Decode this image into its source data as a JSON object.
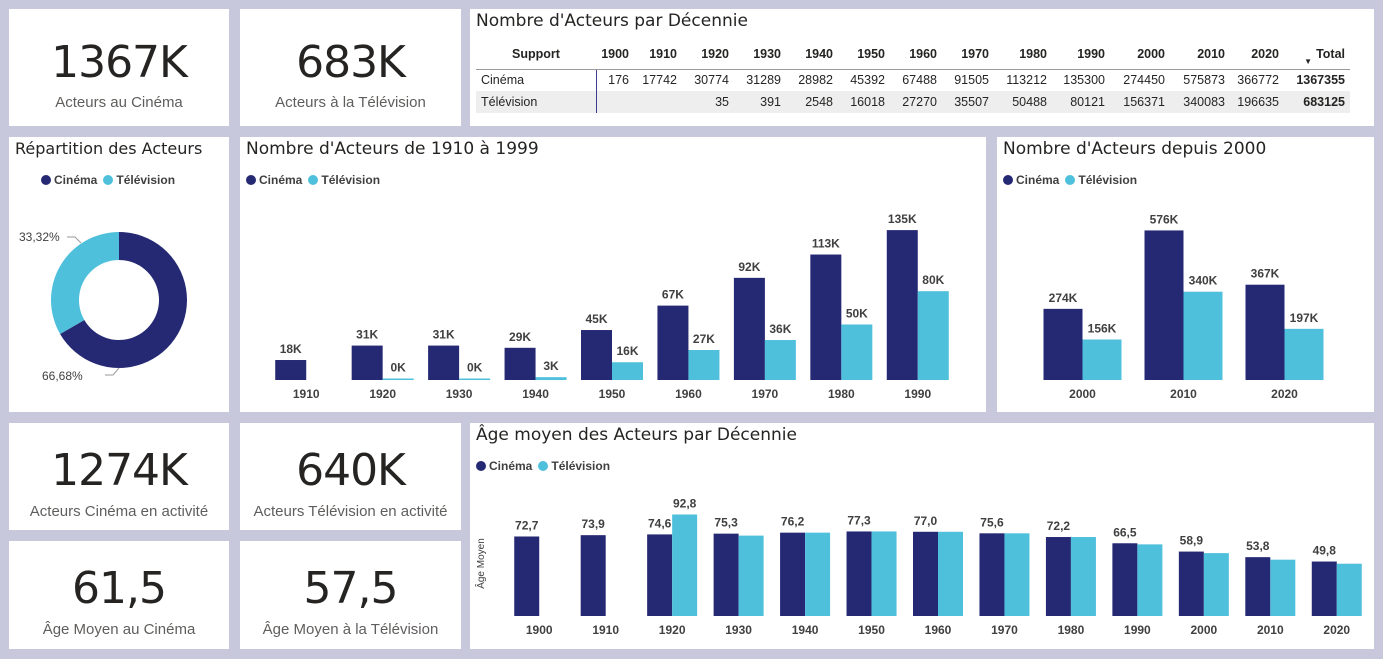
{
  "colors": {
    "cinema": "#252873",
    "television": "#4fc0dc"
  },
  "kpis": {
    "cinema_actors": {
      "value": "1367K",
      "label": "Acteurs au Cinéma"
    },
    "tv_actors": {
      "value": "683K",
      "label": "Acteurs à la Télévision"
    },
    "cinema_active": {
      "value": "1274K",
      "label": "Acteurs Cinéma en activité"
    },
    "tv_active": {
      "value": "640K",
      "label": "Acteurs Télévision en activité"
    },
    "cinema_age": {
      "value": "61,5",
      "label": "Âge Moyen au Cinéma"
    },
    "tv_age": {
      "value": "57,5",
      "label": "Âge Moyen à la Télévision"
    }
  },
  "legend": {
    "cinema": "Cinéma",
    "television": "Télévision"
  },
  "matrix": {
    "title": "Nombre d'Acteurs par Décennie",
    "headers": [
      "Support",
      "1900",
      "1910",
      "1920",
      "1930",
      "1940",
      "1950",
      "1960",
      "1970",
      "1980",
      "1990",
      "2000",
      "2010",
      "2020",
      "Total"
    ],
    "rows": [
      {
        "label": "Cinéma",
        "cells": [
          "176",
          "17742",
          "30774",
          "31289",
          "28982",
          "45392",
          "67488",
          "91505",
          "113212",
          "135300",
          "274450",
          "575873",
          "366772",
          "1367355"
        ]
      },
      {
        "label": "Télévision",
        "cells": [
          "",
          "",
          "35",
          "391",
          "2548",
          "16018",
          "27270",
          "35507",
          "50488",
          "80121",
          "156371",
          "340083",
          "196635",
          "683125"
        ]
      }
    ]
  },
  "chart_data": [
    {
      "id": "donut",
      "type": "pie",
      "title": "Répartition des Acteurs",
      "slices": [
        {
          "name": "Cinéma",
          "value": 66.68,
          "label": "66,68%"
        },
        {
          "name": "Télévision",
          "value": 33.32,
          "label": "33,32%"
        }
      ]
    },
    {
      "id": "bars_1910_1999",
      "type": "bar",
      "title": "Nombre d'Acteurs de 1910 à 1999",
      "categories": [
        "1910",
        "1920",
        "1930",
        "1940",
        "1950",
        "1960",
        "1970",
        "1980",
        "1990"
      ],
      "series": [
        {
          "name": "Cinéma",
          "values": [
            18,
            31,
            31,
            29,
            45,
            67,
            92,
            113,
            135
          ],
          "labels": [
            "18K",
            "31K",
            "31K",
            "29K",
            "45K",
            "67K",
            "92K",
            "113K",
            "135K"
          ]
        },
        {
          "name": "Télévision",
          "values": [
            null,
            0.035,
            0.391,
            2.548,
            16,
            27,
            36,
            50,
            80
          ],
          "labels": [
            "",
            "0K",
            "0K",
            "3K",
            "16K",
            "27K",
            "36K",
            "50K",
            "80K"
          ]
        }
      ],
      "ylim": [
        0,
        145
      ]
    },
    {
      "id": "bars_since_2000",
      "type": "bar",
      "title": "Nombre d'Acteurs depuis 2000",
      "categories": [
        "2000",
        "2010",
        "2020"
      ],
      "series": [
        {
          "name": "Cinéma",
          "values": [
            274,
            576,
            367
          ],
          "labels": [
            "274K",
            "576K",
            "367K"
          ]
        },
        {
          "name": "Télévision",
          "values": [
            156,
            340,
            197
          ],
          "labels": [
            "156K",
            "340K",
            "197K"
          ]
        }
      ],
      "ylim": [
        0,
        620
      ]
    },
    {
      "id": "age_bars",
      "type": "bar",
      "title": "Âge moyen des Acteurs par Décennie",
      "ylabel": "Âge Moyen",
      "categories": [
        "1900",
        "1910",
        "1920",
        "1930",
        "1940",
        "1950",
        "1960",
        "1970",
        "1980",
        "1990",
        "2000",
        "2010",
        "2020"
      ],
      "series": [
        {
          "name": "Cinéma",
          "values": [
            72.7,
            73.9,
            74.6,
            75.3,
            76.2,
            77.3,
            77.0,
            75.6,
            72.2,
            66.5,
            58.9,
            53.8,
            49.8
          ],
          "labels": [
            "72,7",
            "73,9",
            "74,6",
            "75,3",
            "76,2",
            "77,3",
            "77,0",
            "75,6",
            "72,2",
            "66,5",
            "58,9",
            "53,8",
            "49,8"
          ]
        },
        {
          "name": "Télévision",
          "values": [
            null,
            null,
            92.8,
            73.5,
            76.2,
            77.3,
            77.0,
            75.6,
            72.2,
            65.5,
            57.5,
            51.5,
            47.8
          ],
          "labels": [
            "",
            "",
            "92,8",
            "",
            "",
            "",
            "",
            "",
            "",
            "",
            "",
            "",
            ""
          ]
        }
      ],
      "ylim": [
        0,
        96
      ]
    }
  ]
}
